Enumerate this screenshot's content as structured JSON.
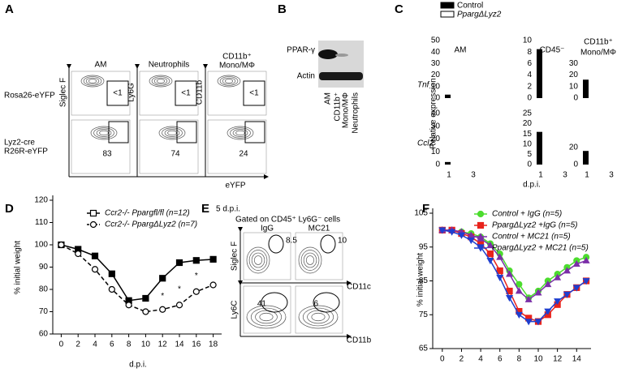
{
  "panels": [
    "A",
    "B",
    "C",
    "D",
    "E",
    "F"
  ],
  "panel_a": {
    "columns": [
      "AM",
      "Neutrophils",
      [
        "CD11b⁺",
        "Mono/MΦ"
      ]
    ],
    "y_axes": [
      "Siglec F",
      "Ly6G",
      "CD11b"
    ],
    "x_axis": "eYFP",
    "rows": [
      [
        "Rosa26-eYFP"
      ],
      [
        "Lyz2-cre",
        "R26R-eYFP"
      ]
    ],
    "gates": [
      [
        "<1",
        "<1",
        "<1"
      ],
      [
        "83",
        "74",
        "24"
      ]
    ]
  },
  "panel_b": {
    "bands": [
      "PPAR-γ",
      "Actin"
    ],
    "lanes": [
      [
        "AM"
      ],
      [
        "CD11b⁺",
        "Mono/MΦ"
      ],
      [
        "Neutrophils"
      ]
    ]
  },
  "panel_e": {
    "title": "5 d.p.i.",
    "gating": "Gated on CD45⁺ Ly6G⁻ cells",
    "columns": [
      "IgG",
      "MC21"
    ],
    "y_axes": [
      "Siglec F",
      "Ly6C"
    ],
    "x_axes": [
      "CD11c",
      "CD11b"
    ],
    "gates": [
      [
        "8.5",
        "10"
      ],
      [
        "41",
        "6"
      ]
    ]
  },
  "chart_data": [
    {
      "type": "grouped-bar-grid",
      "ylabel": "Relative expression",
      "xlabel": "d.p.i.",
      "categories": [
        "1",
        "3"
      ],
      "series": [
        {
          "name": "Control",
          "color": "#000000"
        },
        {
          "name": "PpargΔLyz2",
          "color": "#ffffff"
        }
      ],
      "rows": [
        "Tnf",
        "Ccl2"
      ],
      "columns": [
        [
          "AM"
        ],
        [
          "CD45⁻"
        ],
        [
          "CD11b⁺",
          "Mono/MΦ"
        ]
      ],
      "subplots": [
        {
          "ylim": [
            0,
            50
          ],
          "yticks": [
            0,
            10,
            20,
            30,
            40,
            50
          ],
          "series": [
            {
              "values": [
                3,
                0
              ]
            },
            {
              "values": [
                0,
                0
              ]
            }
          ]
        },
        {
          "ylim": [
            0,
            10
          ],
          "yticks": [
            0,
            2,
            4,
            6,
            8,
            10
          ],
          "series": [
            {
              "values": [
                8.5,
                0
              ]
            },
            {
              "values": [
                0,
                0
              ]
            }
          ]
        },
        {
          "ylim": [
            0,
            50
          ],
          "yticks": [
            0,
            10,
            20,
            30
          ],
          "series": [
            {
              "values": [
                16,
                0
              ]
            },
            {
              "values": [
                0,
                0
              ]
            }
          ]
        },
        {
          "ylim": [
            0,
            40
          ],
          "yticks": [
            0,
            10,
            20,
            30,
            40
          ],
          "series": [
            {
              "values": [
                2,
                0
              ]
            },
            {
              "values": [
                0,
                0
              ]
            }
          ]
        },
        {
          "ylim": [
            0,
            25
          ],
          "yticks": [
            0,
            5,
            10,
            15,
            20,
            25
          ],
          "series": [
            {
              "values": [
                16,
                0
              ]
            },
            {
              "values": [
                0,
                0
              ]
            }
          ]
        },
        {
          "ylim": [
            0,
            60
          ],
          "yticks": [
            0,
            20
          ],
          "series": [
            {
              "values": [
                16,
                0
              ]
            },
            {
              "values": [
                0,
                0
              ]
            }
          ]
        }
      ]
    },
    {
      "type": "line",
      "xlabel": "d.p.i.",
      "ylabel": "% initial weight",
      "x": [
        0,
        2,
        4,
        6,
        8,
        10,
        12,
        14,
        16,
        18
      ],
      "xlim": [
        -1,
        19
      ],
      "xticks": [
        0,
        2,
        4,
        6,
        8,
        10,
        12,
        14,
        16,
        18
      ],
      "ylim": [
        60,
        120
      ],
      "yticks": [
        60,
        70,
        80,
        90,
        100,
        110,
        120
      ],
      "series": [
        {
          "name": "Ccr2-/- Ppargfl/fl (n=12)",
          "color": "#000000",
          "marker": "square",
          "dashed": false,
          "values": [
            100,
            98,
            95,
            87,
            75,
            76,
            85,
            92,
            93,
            93.5
          ]
        },
        {
          "name": "Ccr2-/- PpargΔLyz2 (n=7)",
          "color": "#000000",
          "marker": "circle",
          "dashed": true,
          "values": [
            100,
            96,
            89,
            80,
            73,
            70,
            71,
            73,
            79,
            82
          ]
        }
      ],
      "annotations": [
        {
          "text": "*",
          "x": 12,
          "y": 77
        },
        {
          "text": "*",
          "x": 14,
          "y": 80
        },
        {
          "text": "*",
          "x": 16,
          "y": 86
        }
      ]
    },
    {
      "type": "line",
      "x": [
        0,
        1,
        2,
        3,
        4,
        5,
        6,
        7,
        8,
        9,
        10,
        11,
        12,
        13,
        14,
        15
      ],
      "xlim": [
        -1,
        15.5
      ],
      "xticks": [
        0,
        2,
        4,
        6,
        8,
        10,
        12,
        14
      ],
      "ylabel": "% initial weight",
      "ylim": [
        65,
        105
      ],
      "yticks": [
        65,
        75,
        85,
        95,
        105
      ],
      "series": [
        {
          "name": "Control + IgG (n=5)",
          "color": "#4cdc2e",
          "marker": "circle",
          "dashed": false,
          "values": [
            100,
            100,
            99.5,
            99,
            98,
            96,
            93,
            88,
            84,
            80,
            82,
            85,
            87,
            89,
            91,
            92
          ]
        },
        {
          "name": "PpargΔLyz2 +IgG (n=5)",
          "color": "#e8231c",
          "marker": "square",
          "dashed": false,
          "values": [
            100,
            100,
            99,
            98,
            96,
            93,
            88,
            82,
            76,
            74,
            73,
            75,
            78,
            81,
            83,
            85
          ]
        },
        {
          "name": "Control + MC21 (n=5)",
          "color": "#7b2fa8",
          "marker": "triangle-up",
          "dashed": false,
          "values": [
            100,
            100,
            99.5,
            98.5,
            97.5,
            95.5,
            92,
            87,
            82,
            79.5,
            81.5,
            84,
            86,
            88,
            90,
            91
          ]
        },
        {
          "name": "PpargΔLyz2 + MC21 (n=5)",
          "color": "#1f3fcf",
          "marker": "triangle-down",
          "dashed": false,
          "values": [
            100,
            99.5,
            98.5,
            97,
            95,
            91,
            86,
            80,
            75,
            73,
            73,
            76,
            79,
            81,
            83,
            85
          ]
        }
      ]
    }
  ]
}
